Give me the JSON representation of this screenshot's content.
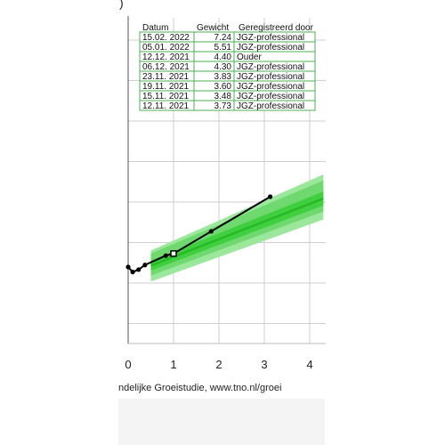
{
  "page": {
    "top_fragment": ")",
    "caption": "ndelijke Groeistudie, www.tno.nl/groei"
  },
  "table": {
    "headers": [
      "Datum",
      "Gewicht",
      "Geregistreerd door"
    ],
    "rows": [
      {
        "date": "15.02. 2022",
        "weight": "7.24",
        "by": "JGZ-professional"
      },
      {
        "date": "05.01. 2022",
        "weight": "5.51",
        "by": "JGZ-professional"
      },
      {
        "date": "12.12. 2021",
        "weight": "4.40",
        "by": "Ouder"
      },
      {
        "date": "06.12. 2021",
        "weight": "4.30",
        "by": "JGZ-professional"
      },
      {
        "date": "23.11. 2021",
        "weight": "3.83",
        "by": "JGZ-professional"
      },
      {
        "date": "19.11. 2021",
        "weight": "3.60",
        "by": "JGZ-professional"
      },
      {
        "date": "15.11. 2021",
        "weight": "3.48",
        "by": "JGZ-professional"
      },
      {
        "date": "12.11. 2021",
        "weight": "3.73",
        "by": "JGZ-professional"
      }
    ]
  },
  "colors": {
    "band_outer": "#9be79b",
    "band_mid": "#6fd96f",
    "band_inner": "#3fcf3f",
    "median": "#27b927",
    "grid": "#cfcfcf",
    "table_border": "#4caf50",
    "line": "#000000"
  },
  "chart_data": {
    "type": "line",
    "x_ticks": [
      "0",
      "1",
      "2",
      "3",
      "4"
    ],
    "xlim": [
      0,
      4.3
    ],
    "series": [
      {
        "x": [
          0,
          0.1,
          0.23,
          0.37,
          0.83,
          1.0,
          1.83,
          3.13
        ],
        "y": [
          3.73,
          3.48,
          3.6,
          3.83,
          4.3,
          4.4,
          5.51,
          7.24
        ],
        "open_marker_index": 5
      }
    ],
    "reference_bands": {
      "x": [
        0.5,
        4.3
      ],
      "outer": {
        "low": [
          3.0,
          6.1
        ],
        "high": [
          4.55,
          8.35
        ]
      },
      "mid": {
        "low": [
          3.3,
          6.5
        ],
        "high": [
          4.4,
          8.05
        ]
      },
      "inner": {
        "low": [
          3.55,
          6.8
        ],
        "high": [
          4.05,
          7.5
        ]
      },
      "median": [
        3.8,
        7.15
      ]
    }
  }
}
